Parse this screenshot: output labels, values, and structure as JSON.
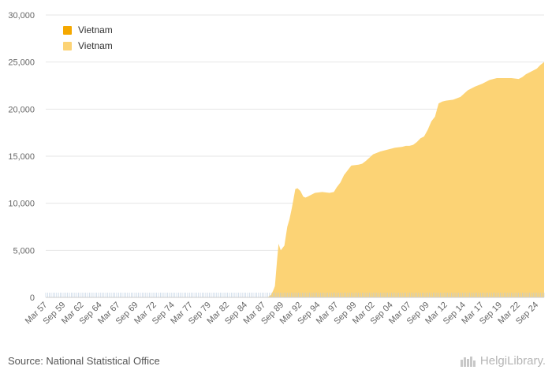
{
  "chart_data": {
    "type": "area",
    "title": "",
    "xlabel": "",
    "ylabel": "",
    "ylim": [
      0,
      30000
    ],
    "yticks": [
      0,
      5000,
      10000,
      15000,
      20000,
      25000,
      30000
    ],
    "ytick_labels": [
      "0",
      "5,000",
      "10,000",
      "15,000",
      "20,000",
      "25,000",
      "30,000"
    ],
    "xlim": [
      1957.0,
      2025.5
    ],
    "xtick_labels": [
      "Mar 57",
      "Sep 59",
      "Mar 62",
      "Sep 64",
      "Mar 67",
      "Sep 69",
      "Mar 72",
      "Sep 74",
      "Mar 77",
      "Sep 79",
      "Mar 82",
      "Sep 84",
      "Mar 87",
      "Sep 89",
      "Mar 92",
      "Sep 94",
      "Mar 97",
      "Sep 99",
      "Mar 02",
      "Sep 04",
      "Mar 07",
      "Sep 09",
      "Mar 12",
      "Sep 14",
      "Mar 17",
      "Sep 19",
      "Mar 22",
      "Sep 24"
    ],
    "xtick_positions": [
      1957.25,
      1959.75,
      1962.25,
      1964.75,
      1967.25,
      1969.75,
      1972.25,
      1974.75,
      1977.25,
      1979.75,
      1982.25,
      1984.75,
      1987.25,
      1989.75,
      1992.25,
      1994.75,
      1997.25,
      1999.75,
      2002.25,
      2004.75,
      2007.25,
      2009.75,
      2012.25,
      2014.75,
      2017.25,
      2019.75,
      2022.25,
      2024.75
    ],
    "legend": [
      "Vietnam",
      "Vietnam"
    ],
    "legend_position": "top-left",
    "series": [
      {
        "name": "Vietnam",
        "color": "#f5a800",
        "x": [
          1957.0,
          1988.0,
          2025.5
        ],
        "y": [
          0,
          0,
          0
        ]
      },
      {
        "name": "Vietnam",
        "color": "#fcd375",
        "x": [
          1957.0,
          1987.5,
          1988.0,
          1988.3,
          1988.5,
          1988.8,
          1989.0,
          1989.3,
          1989.6,
          1989.8,
          1990.2,
          1990.5,
          1990.8,
          1991.0,
          1991.3,
          1991.6,
          1992.0,
          1992.4,
          1992.7,
          1993.0,
          1993.5,
          1994.0,
          1995.0,
          1996.0,
          1996.6,
          1997.0,
          1997.5,
          1998.0,
          1998.5,
          1999.0,
          2000.0,
          2000.5,
          2001.0,
          2002.0,
          2003.0,
          2004.0,
          2005.0,
          2006.0,
          2006.5,
          2007.0,
          2007.5,
          2008.0,
          2008.5,
          2009.0,
          2009.5,
          2010.0,
          2010.5,
          2011.0,
          2011.5,
          2012.0,
          2013.0,
          2014.0,
          2015.0,
          2016.0,
          2017.0,
          2018.0,
          2019.0,
          2020.0,
          2021.0,
          2022.0,
          2022.5,
          2023.0,
          2023.5,
          2024.0,
          2024.5,
          2025.0,
          2025.5
        ],
        "y": [
          0,
          0,
          300,
          800,
          1200,
          4000,
          5700,
          5000,
          5300,
          5500,
          7500,
          8300,
          9400,
          10200,
          11500,
          11600,
          11300,
          10700,
          10600,
          10700,
          10900,
          11100,
          11200,
          11100,
          11200,
          11700,
          12200,
          13000,
          13500,
          14000,
          14100,
          14200,
          14500,
          15200,
          15500,
          15700,
          15900,
          16000,
          16100,
          16100,
          16200,
          16500,
          16900,
          17100,
          17800,
          18700,
          19200,
          20600,
          20800,
          20900,
          21000,
          21300,
          22000,
          22400,
          22700,
          23100,
          23300,
          23300,
          23300,
          23200,
          23400,
          23700,
          23900,
          24100,
          24300,
          24700,
          25000
        ]
      }
    ]
  },
  "footer": {
    "source": "Source: National Statistical Office",
    "brand": "HelgiLibrary."
  }
}
